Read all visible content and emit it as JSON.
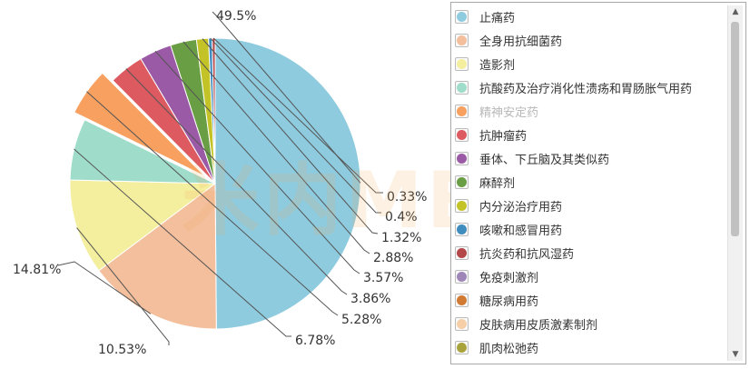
{
  "watermark": "米内MENET",
  "chart_data": {
    "type": "pie",
    "labels": [
      "止痛药",
      "全身用抗细菌药",
      "造影剂",
      "抗酸药及治疗消化性溃疡和胃肠胀气用药",
      "精神安定药",
      "抗肿瘤药",
      "垂体、下丘脑及其类似药",
      "麻醉剂",
      "内分泌治疗用药",
      "咳嗽和感冒用药",
      "抗炎药和抗风湿药",
      "免疫刺激剂",
      "糖尿病用药",
      "皮肤病用皮质激素制剂",
      "肌肉松弛药"
    ],
    "slice_values": [
      49.5,
      14.81,
      10.53,
      6.78,
      5.28,
      3.86,
      3.57,
      2.88,
      1.32,
      0.4,
      0.33
    ],
    "slice_labels": [
      "49.5%",
      "14.81%",
      "10.53%",
      "6.78%",
      "5.28%",
      "3.86%",
      "3.57%",
      "2.88%",
      "1.32%",
      "0.4%",
      "0.33%"
    ],
    "slice_colors": [
      "#8ecbdf",
      "#f4bf9c",
      "#f4ef9e",
      "#9fdcca",
      "#f7a060",
      "#dc5a60",
      "#9b5aa5",
      "#6a9e44",
      "#c3c227",
      "#3f8cbf",
      "#b4474a"
    ],
    "slice_legend_index": [
      0,
      1,
      2,
      3,
      4,
      5,
      6,
      7,
      8,
      9,
      10
    ],
    "exploded_slice": 4,
    "legend_colors": [
      "#8ecbdf",
      "#f4bf9c",
      "#f4ef9e",
      "#9fdcca",
      "#f7a060",
      "#dc5a60",
      "#9b5aa5",
      "#6a9e44",
      "#c3c227",
      "#3f8cbf",
      "#b4474a",
      "#9e86b8",
      "#d07a33",
      "#f6cfa8",
      "#a9a33b"
    ],
    "legend_hidden_index": 4,
    "legend_placement": "right"
  }
}
